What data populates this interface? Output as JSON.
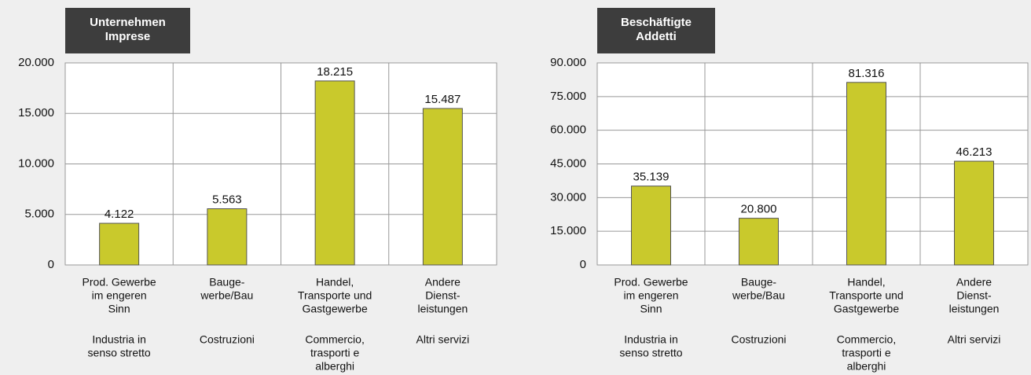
{
  "chart_data": [
    {
      "type": "bar",
      "title": [
        "Unternehmen",
        "Imprese"
      ],
      "categories": [
        {
          "de": [
            "Prod. Gewerbe",
            "im engeren",
            "Sinn"
          ],
          "it": [
            "Industria in",
            "senso stretto"
          ]
        },
        {
          "de": [
            "Bauge-",
            "werbe/Bau"
          ],
          "it": [
            "Costruzioni"
          ]
        },
        {
          "de": [
            "Handel,",
            "Transporte und",
            "Gastgewerbe"
          ],
          "it": [
            "Commercio,",
            "trasporti e",
            "alberghi"
          ]
        },
        {
          "de": [
            "Andere",
            "Dienst-",
            "leistungen"
          ],
          "it": [
            "Altri servizi"
          ]
        }
      ],
      "values": [
        4122,
        5563,
        18215,
        15487
      ],
      "value_labels": [
        "4.122",
        "5.563",
        "18.215",
        "15.487"
      ],
      "color": "#c9c92c",
      "ylim": [
        0,
        20000
      ],
      "yticks": [
        0,
        {
          "value": 5000,
          "label": "5.000"
        },
        {
          "value": 10000,
          "label": "10.000"
        },
        {
          "value": 15000,
          "label": "15.000"
        },
        {
          "value": 20000,
          "label": "20.000"
        }
      ],
      "grid": true
    },
    {
      "type": "bar",
      "title": [
        "Beschäftigte",
        "Addetti"
      ],
      "categories": [
        {
          "de": [
            "Prod. Gewerbe",
            "im engeren",
            "Sinn"
          ],
          "it": [
            "Industria in",
            "senso stretto"
          ]
        },
        {
          "de": [
            "Bauge-",
            "werbe/Bau"
          ],
          "it": [
            "Costruzioni"
          ]
        },
        {
          "de": [
            "Handel,",
            "Transporte und",
            "Gastgewerbe"
          ],
          "it": [
            "Commercio,",
            "trasporti e",
            "alberghi"
          ]
        },
        {
          "de": [
            "Andere",
            "Dienst-",
            "leistungen"
          ],
          "it": [
            "Altri servizi"
          ]
        }
      ],
      "values": [
        35139,
        20800,
        81316,
        46213
      ],
      "value_labels": [
        "35.139",
        "20.800",
        "81.316",
        "46.213"
      ],
      "color": "#c9c92c",
      "ylim": [
        0,
        90000
      ],
      "yticks": [
        0,
        {
          "value": 15000,
          "label": "15.000"
        },
        {
          "value": 30000,
          "label": "30.000"
        },
        {
          "value": 45000,
          "label": "45.000"
        },
        {
          "value": 60000,
          "label": "60.000"
        },
        {
          "value": 75000,
          "label": "75.000"
        },
        {
          "value": 90000,
          "label": "90.000"
        }
      ],
      "grid": true
    }
  ]
}
